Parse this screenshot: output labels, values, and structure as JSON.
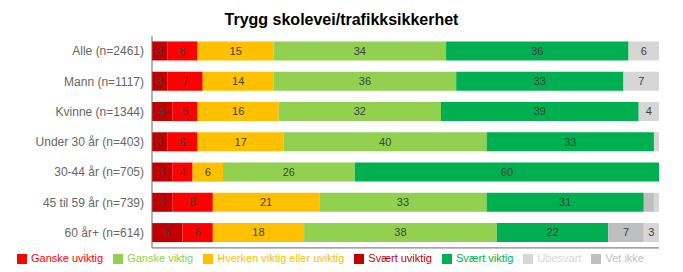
{
  "chart_data": {
    "type": "bar",
    "orientation": "horizontal",
    "stacked": true,
    "title": "Trygg skolevei/trafikksikkerhet",
    "categories": [
      "Alle (n=2461)",
      "Mann (n=1117)",
      "Kvinne (n=1344)",
      "Under 30 år (n=403)",
      "30-44 år (n=705)",
      "45 til 59 år (n=739)",
      "60 år+ (n=614)"
    ],
    "series": [
      {
        "name": "Svært uviktig",
        "color": "#c00000",
        "values": [
          3,
          3,
          4,
          3,
          4,
          4,
          6
        ],
        "value_labels": [
          "3",
          "3",
          "4",
          "3",
          "4",
          "4",
          "6"
        ]
      },
      {
        "name": "Ganske uviktig",
        "color": "#ff0000",
        "values": [
          6,
          7,
          5,
          6,
          4,
          8,
          6
        ],
        "value_labels": [
          "6",
          "7",
          "5",
          "6",
          "4",
          "8",
          "6"
        ]
      },
      {
        "name": "Hverken viktig eller uviktig",
        "color": "#ffc000",
        "values": [
          15,
          14,
          16,
          17,
          6,
          21,
          18
        ],
        "value_labels": [
          "15",
          "14",
          "16",
          "17",
          "6",
          "21",
          "18"
        ]
      },
      {
        "name": "Ganske viktig",
        "color": "#92d050",
        "values": [
          34,
          36,
          32,
          40,
          26,
          33,
          38
        ],
        "value_labels": [
          "34",
          "36",
          "32",
          "40",
          "26",
          "33",
          "38"
        ]
      },
      {
        "name": "Svært viktig",
        "color": "#00b050",
        "values": [
          36,
          33,
          39,
          33,
          60,
          31,
          22
        ],
        "value_labels": [
          "36",
          "33",
          "39",
          "33",
          "60",
          "31",
          "22"
        ]
      },
      {
        "name": "Vet ikke",
        "color": "#bfbfbf",
        "values": [
          0,
          0,
          0,
          0,
          0,
          2,
          7
        ],
        "value_labels": [
          null,
          null,
          null,
          null,
          null,
          null,
          "7"
        ]
      },
      {
        "name": "Ubesvart",
        "color": "#d6d6d6",
        "values": [
          6,
          7,
          4,
          1,
          0,
          1,
          3
        ],
        "value_labels": [
          "6",
          "7",
          "4",
          null,
          null,
          null,
          "3"
        ]
      }
    ],
    "xlim": [
      0,
      100
    ],
    "data_labels": true,
    "tick_labels": "y",
    "grid": false,
    "legend": "bottom"
  }
}
